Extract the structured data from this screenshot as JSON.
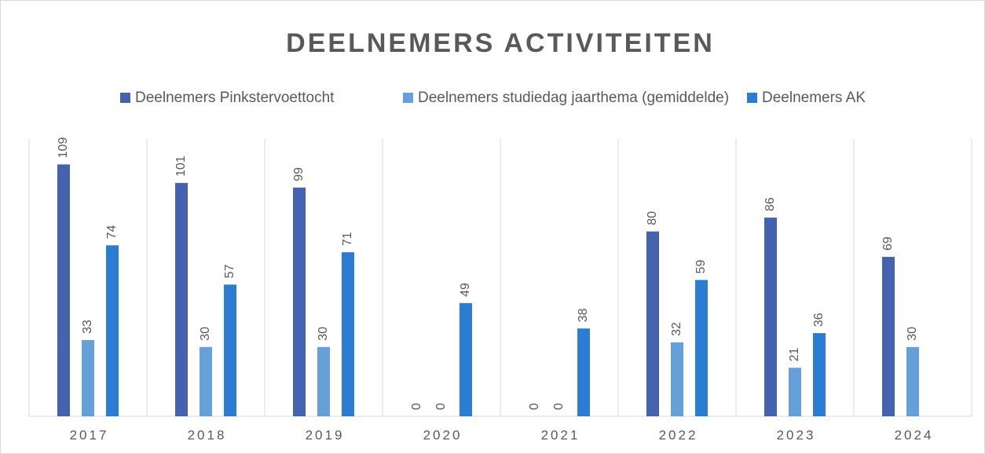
{
  "chart_data": {
    "type": "bar",
    "title": "DEELNEMERS ACTIVITEITEN",
    "categories": [
      "2017",
      "2018",
      "2019",
      "2020",
      "2021",
      "2022",
      "2023",
      "2024"
    ],
    "series": [
      {
        "name": "Deelnemers Pinkstervoettocht",
        "color": "#4562ae",
        "values": [
          109,
          101,
          99,
          0,
          0,
          80,
          86,
          69
        ]
      },
      {
        "name": "Deelnemers studiedag jaarthema (gemiddelde)",
        "color": "#65a1d8",
        "values": [
          33,
          30,
          30,
          0,
          0,
          32,
          21,
          30
        ]
      },
      {
        "name": "Deelnemers AK",
        "color": "#2b7cd3",
        "values": [
          74,
          57,
          71,
          49,
          38,
          59,
          36,
          null
        ]
      }
    ],
    "ylim": [
      0,
      120
    ],
    "legend": "top"
  }
}
